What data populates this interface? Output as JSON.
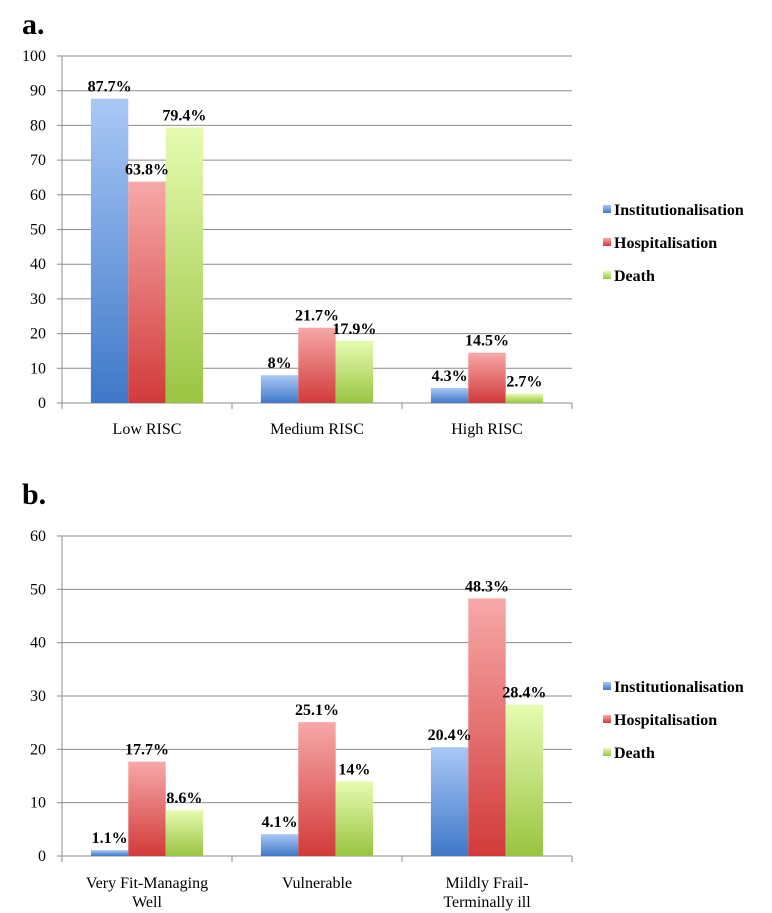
{
  "panels": {
    "a": {
      "label": "a."
    },
    "b": {
      "label": "b."
    }
  },
  "colors": {
    "Institutionalisation": {
      "top": "#a9c8f5",
      "bottom": "#3f78c8"
    },
    "Hospitalisation": {
      "top": "#f7a8a8",
      "bottom": "#d23a3a"
    },
    "Death": {
      "top": "#e6fbb1",
      "bottom": "#9ac441"
    },
    "grid": "#8c8c8c",
    "axis": "#8c8c8c"
  },
  "chart_data": [
    {
      "type": "bar",
      "panel": "a",
      "categories": [
        "Low RISC",
        "Medium RISC",
        "High RISC"
      ],
      "series": [
        {
          "name": "Institutionalisation",
          "values": [
            87.7,
            8,
            4.3
          ],
          "labels": [
            "87.7%",
            "8%",
            "4.3%"
          ]
        },
        {
          "name": "Hospitalisation",
          "values": [
            63.8,
            21.7,
            14.5
          ],
          "labels": [
            "63.8%",
            "21.7%",
            "14.5%"
          ]
        },
        {
          "name": "Death",
          "values": [
            79.4,
            17.9,
            2.7
          ],
          "labels": [
            "79.4%",
            "17.9%",
            "2.7%"
          ]
        }
      ],
      "ylim": [
        0,
        100
      ],
      "yticks": [
        0,
        10,
        20,
        30,
        40,
        50,
        60,
        70,
        80,
        90,
        100
      ],
      "grid": true,
      "legend": "right"
    },
    {
      "type": "bar",
      "panel": "b",
      "categories": [
        [
          "Very Fit-Managing",
          "Well"
        ],
        [
          "Vulnerable"
        ],
        [
          "Mildly Frail-",
          "Terminally ill"
        ]
      ],
      "series": [
        {
          "name": "Institutionalisation",
          "values": [
            1.1,
            4.1,
            20.4
          ],
          "labels": [
            "1.1%",
            "4.1%",
            "20.4%"
          ]
        },
        {
          "name": "Hospitalisation",
          "values": [
            17.7,
            25.1,
            48.3
          ],
          "labels": [
            "17.7%",
            "25.1%",
            "48.3%"
          ]
        },
        {
          "name": "Death",
          "values": [
            8.6,
            14,
            28.4
          ],
          "labels": [
            "8.6%",
            "14%",
            "28.4%"
          ]
        }
      ],
      "ylim": [
        0,
        60
      ],
      "yticks": [
        0,
        10,
        20,
        30,
        40,
        50,
        60
      ],
      "grid": true,
      "legend": "right"
    }
  ]
}
